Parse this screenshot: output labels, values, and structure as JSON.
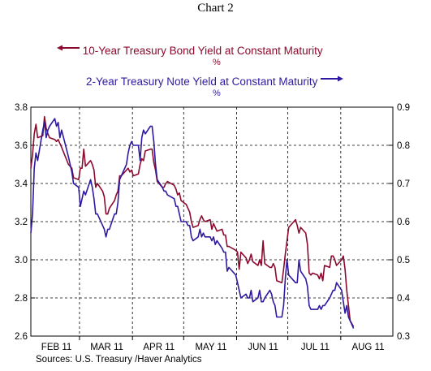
{
  "chart_data": {
    "type": "line",
    "title": "Chart 2",
    "source": "Sources:  U.S. Treasury /Haver Analytics",
    "x_labels": [
      "FEB 11",
      "MAR 11",
      "APR 11",
      "MAY 11",
      "JUN 11",
      "JUL 11",
      "AUG 11"
    ],
    "x_range": [
      "2011-01-31",
      "2011-08-31"
    ],
    "left_axis": {
      "ylim": [
        2.6,
        3.8
      ],
      "ticks": [
        "2.6",
        "2.8",
        "3.0",
        "3.2",
        "3.4",
        "3.6",
        "3.8"
      ]
    },
    "right_axis": {
      "ylim": [
        0.3,
        0.9
      ],
      "ticks": [
        "0.3",
        "0.4",
        "0.5",
        "0.6",
        "0.7",
        "0.8",
        "0.9"
      ]
    },
    "grid": true,
    "series": [
      {
        "name": "10-Year Treasury Bond Yield at Constant Maturity",
        "unit": "%",
        "axis": "left",
        "color": "#8b0a2e",
        "legend_arrow": "left",
        "points": [
          [
            "2011-01-31",
            3.48
          ],
          [
            "2011-02-01",
            3.55
          ],
          [
            "2011-02-02",
            3.66
          ],
          [
            "2011-02-03",
            3.71
          ],
          [
            "2011-02-04",
            3.64
          ],
          [
            "2011-02-07",
            3.65
          ],
          [
            "2011-02-08",
            3.75
          ],
          [
            "2011-02-09",
            3.69
          ],
          [
            "2011-02-10",
            3.66
          ],
          [
            "2011-02-11",
            3.64
          ],
          [
            "2011-02-14",
            3.63
          ],
          [
            "2011-02-15",
            3.62
          ],
          [
            "2011-02-16",
            3.63
          ],
          [
            "2011-02-17",
            3.61
          ],
          [
            "2011-02-18",
            3.59
          ],
          [
            "2011-02-22",
            3.5
          ],
          [
            "2011-02-23",
            3.49
          ],
          [
            "2011-02-24",
            3.48
          ],
          [
            "2011-02-25",
            3.43
          ],
          [
            "2011-02-28",
            3.42
          ],
          [
            "2011-03-01",
            3.48
          ],
          [
            "2011-03-02",
            3.48
          ],
          [
            "2011-03-03",
            3.58
          ],
          [
            "2011-03-04",
            3.49
          ],
          [
            "2011-03-07",
            3.52
          ],
          [
            "2011-03-08",
            3.5
          ],
          [
            "2011-03-09",
            3.47
          ],
          [
            "2011-03-10",
            3.38
          ],
          [
            "2011-03-11",
            3.4
          ],
          [
            "2011-03-14",
            3.36
          ],
          [
            "2011-03-15",
            3.33
          ],
          [
            "2011-03-16",
            3.24
          ],
          [
            "2011-03-17",
            3.24
          ],
          [
            "2011-03-18",
            3.27
          ],
          [
            "2011-03-21",
            3.31
          ],
          [
            "2011-03-22",
            3.34
          ],
          [
            "2011-03-23",
            3.36
          ],
          [
            "2011-03-24",
            3.44
          ],
          [
            "2011-03-25",
            3.44
          ],
          [
            "2011-03-28",
            3.47
          ],
          [
            "2011-03-29",
            3.48
          ],
          [
            "2011-03-30",
            3.46
          ],
          [
            "2011-03-31",
            3.47
          ],
          [
            "2011-04-01",
            3.44
          ],
          [
            "2011-04-04",
            3.45
          ],
          [
            "2011-04-05",
            3.5
          ],
          [
            "2011-04-06",
            3.53
          ],
          [
            "2011-04-07",
            3.52
          ],
          [
            "2011-04-08",
            3.57
          ],
          [
            "2011-04-11",
            3.58
          ],
          [
            "2011-04-12",
            3.58
          ],
          [
            "2011-04-13",
            3.51
          ],
          [
            "2011-04-14",
            3.47
          ],
          [
            "2011-04-15",
            3.41
          ],
          [
            "2011-04-18",
            3.38
          ],
          [
            "2011-04-19",
            3.38
          ],
          [
            "2011-04-20",
            3.4
          ],
          [
            "2011-04-21",
            3.41
          ],
          [
            "2011-04-25",
            3.39
          ],
          [
            "2011-04-26",
            3.37
          ],
          [
            "2011-04-27",
            3.34
          ],
          [
            "2011-04-28",
            3.35
          ],
          [
            "2011-04-29",
            3.31
          ],
          [
            "2011-05-02",
            3.29
          ],
          [
            "2011-05-03",
            3.27
          ],
          [
            "2011-05-04",
            3.25
          ],
          [
            "2011-05-05",
            3.2
          ],
          [
            "2011-05-06",
            3.17
          ],
          [
            "2011-05-09",
            3.18
          ],
          [
            "2011-05-10",
            3.21
          ],
          [
            "2011-05-11",
            3.23
          ],
          [
            "2011-05-12",
            3.21
          ],
          [
            "2011-05-13",
            3.2
          ],
          [
            "2011-05-16",
            3.21
          ],
          [
            "2011-05-17",
            3.16
          ],
          [
            "2011-05-18",
            3.19
          ],
          [
            "2011-05-19",
            3.17
          ],
          [
            "2011-05-20",
            3.15
          ],
          [
            "2011-05-23",
            3.16
          ],
          [
            "2011-05-24",
            3.13
          ],
          [
            "2011-05-25",
            3.13
          ],
          [
            "2011-05-26",
            3.07
          ],
          [
            "2011-05-27",
            3.07
          ],
          [
            "2011-05-31",
            3.05
          ],
          [
            "2011-06-01",
            3.04
          ],
          [
            "2011-06-02",
            2.95
          ],
          [
            "2011-06-03",
            3.04
          ],
          [
            "2011-06-06",
            3.01
          ],
          [
            "2011-06-07",
            2.98
          ],
          [
            "2011-06-08",
            3.0
          ],
          [
            "2011-06-09",
            3.03
          ],
          [
            "2011-06-10",
            2.99
          ],
          [
            "2011-06-13",
            2.97
          ],
          [
            "2011-06-14",
            3.0
          ],
          [
            "2011-06-15",
            2.97
          ],
          [
            "2011-06-16",
            3.1
          ],
          [
            "2011-06-17",
            2.98
          ],
          [
            "2011-06-20",
            2.96
          ],
          [
            "2011-06-21",
            2.96
          ],
          [
            "2011-06-22",
            2.98
          ],
          [
            "2011-06-23",
            2.96
          ],
          [
            "2011-06-24",
            2.89
          ],
          [
            "2011-06-27",
            2.88
          ],
          [
            "2011-06-28",
            2.95
          ],
          [
            "2011-06-29",
            3.03
          ],
          [
            "2011-06-30",
            3.1
          ],
          [
            "2011-07-01",
            3.17
          ],
          [
            "2011-07-05",
            3.21
          ],
          [
            "2011-07-06",
            3.18
          ],
          [
            "2011-07-07",
            3.14
          ],
          [
            "2011-07-08",
            3.17
          ],
          [
            "2011-07-11",
            3.14
          ],
          [
            "2011-07-12",
            3.08
          ],
          [
            "2011-07-13",
            2.93
          ],
          [
            "2011-07-14",
            2.92
          ],
          [
            "2011-07-15",
            2.93
          ],
          [
            "2011-07-18",
            2.92
          ],
          [
            "2011-07-19",
            2.9
          ],
          [
            "2011-07-20",
            2.93
          ],
          [
            "2011-07-21",
            2.89
          ],
          [
            "2011-07-22",
            2.97
          ],
          [
            "2011-07-25",
            2.96
          ],
          [
            "2011-07-26",
            3.02
          ],
          [
            "2011-07-27",
            3.02
          ],
          [
            "2011-07-28",
            3.0
          ],
          [
            "2011-07-29",
            2.97
          ],
          [
            "2011-08-01",
            3.0
          ],
          [
            "2011-08-02",
            3.02
          ],
          [
            "2011-08-03",
            2.95
          ],
          [
            "2011-08-04",
            2.84
          ],
          [
            "2011-08-05",
            2.76
          ],
          [
            "2011-08-06",
            2.68
          ],
          [
            "2011-08-08",
            2.65
          ]
        ]
      },
      {
        "name": "2-Year Treasury Note Yield at Constant Maturity",
        "unit": "%",
        "axis": "right",
        "color": "#2e1aa0",
        "legend_arrow": "right",
        "points": [
          [
            "2011-01-31",
            0.57
          ],
          [
            "2011-02-01",
            0.62
          ],
          [
            "2011-02-02",
            0.74
          ],
          [
            "2011-02-03",
            0.78
          ],
          [
            "2011-02-04",
            0.76
          ],
          [
            "2011-02-07",
            0.84
          ],
          [
            "2011-02-08",
            0.86
          ],
          [
            "2011-02-09",
            0.82
          ],
          [
            "2011-02-10",
            0.84
          ],
          [
            "2011-02-11",
            0.85
          ],
          [
            "2011-02-14",
            0.87
          ],
          [
            "2011-02-15",
            0.85
          ],
          [
            "2011-02-16",
            0.86
          ],
          [
            "2011-02-17",
            0.82
          ],
          [
            "2011-02-18",
            0.84
          ],
          [
            "2011-02-22",
            0.77
          ],
          [
            "2011-02-23",
            0.75
          ],
          [
            "2011-02-24",
            0.73
          ],
          [
            "2011-02-25",
            0.7
          ],
          [
            "2011-02-28",
            0.69
          ],
          [
            "2011-03-01",
            0.64
          ],
          [
            "2011-03-02",
            0.66
          ],
          [
            "2011-03-03",
            0.68
          ],
          [
            "2011-03-04",
            0.67
          ],
          [
            "2011-03-07",
            0.71
          ],
          [
            "2011-03-08",
            0.69
          ],
          [
            "2011-03-09",
            0.66
          ],
          [
            "2011-03-10",
            0.62
          ],
          [
            "2011-03-11",
            0.62
          ],
          [
            "2011-03-14",
            0.59
          ],
          [
            "2011-03-15",
            0.58
          ],
          [
            "2011-03-16",
            0.56
          ],
          [
            "2011-03-17",
            0.58
          ],
          [
            "2011-03-18",
            0.58
          ],
          [
            "2011-03-21",
            0.62
          ],
          [
            "2011-03-22",
            0.62
          ],
          [
            "2011-03-23",
            0.65
          ],
          [
            "2011-03-24",
            0.71
          ],
          [
            "2011-03-25",
            0.72
          ],
          [
            "2011-03-28",
            0.75
          ],
          [
            "2011-03-29",
            0.78
          ],
          [
            "2011-03-30",
            0.8
          ],
          [
            "2011-03-31",
            0.81
          ],
          [
            "2011-04-01",
            0.8
          ],
          [
            "2011-04-04",
            0.8
          ],
          [
            "2011-04-05",
            0.76
          ],
          [
            "2011-04-06",
            0.82
          ],
          [
            "2011-04-07",
            0.84
          ],
          [
            "2011-04-08",
            0.83
          ],
          [
            "2011-04-11",
            0.85
          ],
          [
            "2011-04-12",
            0.85
          ],
          [
            "2011-04-13",
            0.81
          ],
          [
            "2011-04-14",
            0.75
          ],
          [
            "2011-04-15",
            0.71
          ],
          [
            "2011-04-18",
            0.69
          ],
          [
            "2011-04-19",
            0.68
          ],
          [
            "2011-04-20",
            0.68
          ],
          [
            "2011-04-21",
            0.67
          ],
          [
            "2011-04-25",
            0.66
          ],
          [
            "2011-04-26",
            0.64
          ],
          [
            "2011-04-27",
            0.64
          ],
          [
            "2011-04-28",
            0.62
          ],
          [
            "2011-04-29",
            0.6
          ],
          [
            "2011-05-02",
            0.6
          ],
          [
            "2011-05-03",
            0.59
          ],
          [
            "2011-05-04",
            0.59
          ],
          [
            "2011-05-05",
            0.56
          ],
          [
            "2011-05-06",
            0.55
          ],
          [
            "2011-05-09",
            0.56
          ],
          [
            "2011-05-10",
            0.58
          ],
          [
            "2011-05-11",
            0.56
          ],
          [
            "2011-05-12",
            0.57
          ],
          [
            "2011-05-13",
            0.56
          ],
          [
            "2011-05-16",
            0.56
          ],
          [
            "2011-05-17",
            0.55
          ],
          [
            "2011-05-18",
            0.56
          ],
          [
            "2011-05-19",
            0.54
          ],
          [
            "2011-05-20",
            0.55
          ],
          [
            "2011-05-23",
            0.53
          ],
          [
            "2011-05-24",
            0.52
          ],
          [
            "2011-05-25",
            0.52
          ],
          [
            "2011-05-26",
            0.47
          ],
          [
            "2011-05-27",
            0.48
          ],
          [
            "2011-05-31",
            0.46
          ],
          [
            "2011-06-01",
            0.44
          ],
          [
            "2011-06-02",
            0.42
          ],
          [
            "2011-06-03",
            0.4
          ],
          [
            "2011-06-06",
            0.41
          ],
          [
            "2011-06-07",
            0.4
          ],
          [
            "2011-06-08",
            0.4
          ],
          [
            "2011-06-09",
            0.42
          ],
          [
            "2011-06-10",
            0.39
          ],
          [
            "2011-06-13",
            0.4
          ],
          [
            "2011-06-14",
            0.42
          ],
          [
            "2011-06-15",
            0.39
          ],
          [
            "2011-06-16",
            0.39
          ],
          [
            "2011-06-17",
            0.4
          ],
          [
            "2011-06-20",
            0.42
          ],
          [
            "2011-06-21",
            0.41
          ],
          [
            "2011-06-22",
            0.39
          ],
          [
            "2011-06-23",
            0.38
          ],
          [
            "2011-06-24",
            0.35
          ],
          [
            "2011-06-27",
            0.35
          ],
          [
            "2011-06-28",
            0.38
          ],
          [
            "2011-06-29",
            0.45
          ],
          [
            "2011-06-30",
            0.5
          ],
          [
            "2011-07-01",
            0.46
          ],
          [
            "2011-07-05",
            0.44
          ],
          [
            "2011-07-06",
            0.44
          ],
          [
            "2011-07-07",
            0.5
          ],
          [
            "2011-07-08",
            0.47
          ],
          [
            "2011-07-11",
            0.45
          ],
          [
            "2011-07-12",
            0.43
          ],
          [
            "2011-07-13",
            0.38
          ],
          [
            "2011-07-14",
            0.37
          ],
          [
            "2011-07-15",
            0.37
          ],
          [
            "2011-07-18",
            0.37
          ],
          [
            "2011-07-19",
            0.38
          ],
          [
            "2011-07-20",
            0.37
          ],
          [
            "2011-07-21",
            0.38
          ],
          [
            "2011-07-22",
            0.38
          ],
          [
            "2011-07-25",
            0.4
          ],
          [
            "2011-07-26",
            0.41
          ],
          [
            "2011-07-27",
            0.42
          ],
          [
            "2011-07-28",
            0.42
          ],
          [
            "2011-07-29",
            0.44
          ],
          [
            "2011-08-01",
            0.42
          ],
          [
            "2011-08-02",
            0.39
          ],
          [
            "2011-08-03",
            0.36
          ],
          [
            "2011-08-04",
            0.38
          ],
          [
            "2011-08-05",
            0.35
          ],
          [
            "2011-08-06",
            0.34
          ],
          [
            "2011-08-08",
            0.32
          ]
        ]
      }
    ]
  }
}
